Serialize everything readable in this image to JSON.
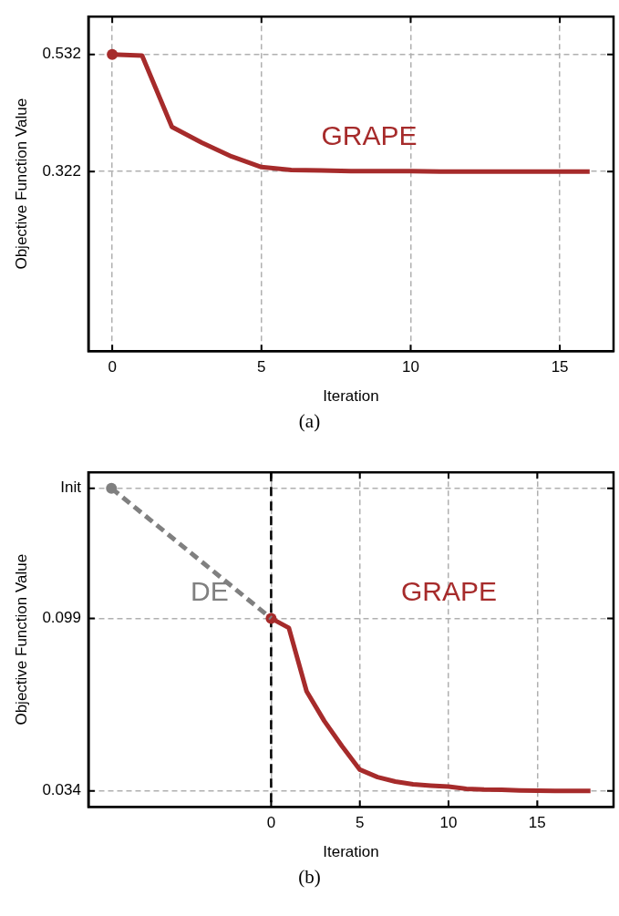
{
  "chart_data": [
    {
      "type": "line",
      "xlabel": "Iteration",
      "ylabel": "Objective Function Value",
      "x": [
        0,
        1,
        2,
        3,
        4,
        5,
        6,
        7,
        8,
        9,
        10,
        11,
        12,
        13,
        14,
        15,
        16
      ],
      "series": [
        {
          "name": "GRAPE",
          "color": "#a62b2b",
          "values": [
            0.532,
            0.53,
            0.402,
            0.374,
            0.349,
            0.33,
            0.325,
            0.324,
            0.323,
            0.323,
            0.323,
            0.322,
            0.322,
            0.322,
            0.322,
            0.322,
            0.322
          ]
        },
        {
          "type": "scatter",
          "color": "#a62b2b",
          "x": [
            0
          ],
          "values": [
            0.532
          ],
          "marker": "circle"
        }
      ],
      "xlim": [
        -0.8,
        16.8
      ],
      "ylim": [
        0,
        0.6
      ],
      "xticks": [
        0,
        5,
        10,
        15
      ],
      "yticks": [
        0.322,
        0.532
      ],
      "grid": true,
      "legend": false,
      "line_style": "solid",
      "annotations": [
        "(a)"
      ]
    },
    {
      "type": "line",
      "xlabel": "Iteration",
      "ylabel": "Objective Function Value",
      "series": [
        {
          "name": "DE",
          "color": "#808080",
          "x": [
            -9,
            0
          ],
          "values": [
            0.148,
            0.099
          ],
          "line_style": "dashed"
        },
        {
          "name": "GRAPE",
          "color": "#a62b2b",
          "x": [
            0,
            1,
            2,
            3,
            4,
            5,
            6,
            7,
            8,
            9,
            10,
            11,
            12,
            13,
            14,
            15,
            16,
            17,
            18
          ],
          "values": [
            0.099,
            0.0954,
            0.0715,
            0.0603,
            0.0508,
            0.042,
            0.0392,
            0.0375,
            0.0365,
            0.036,
            0.0356,
            0.0348,
            0.0345,
            0.0344,
            0.0342,
            0.0341,
            0.034,
            0.034,
            0.034
          ],
          "line_style": "solid"
        },
        {
          "type": "scatter",
          "color": "#808080",
          "x": [
            -9
          ],
          "values": [
            0.148
          ],
          "marker": "circle"
        },
        {
          "type": "scatter",
          "color": "#a62b2b",
          "x": [
            0
          ],
          "values": [
            0.099
          ],
          "marker": "circle"
        }
      ],
      "xlim": [
        -10.3,
        19.3
      ],
      "ylim": [
        0.028,
        0.154
      ],
      "xticks": [
        0,
        5,
        10,
        15
      ],
      "yticks": [
        0.034,
        0.099,
        {
          "value": 0.148,
          "label": "Init"
        }
      ],
      "grid": true,
      "legend": false,
      "ref_lines": [
        {
          "axis": "x",
          "value": 0,
          "color": "#000000",
          "line_style": "dashed"
        }
      ],
      "annotations": [
        "(b)"
      ]
    }
  ]
}
